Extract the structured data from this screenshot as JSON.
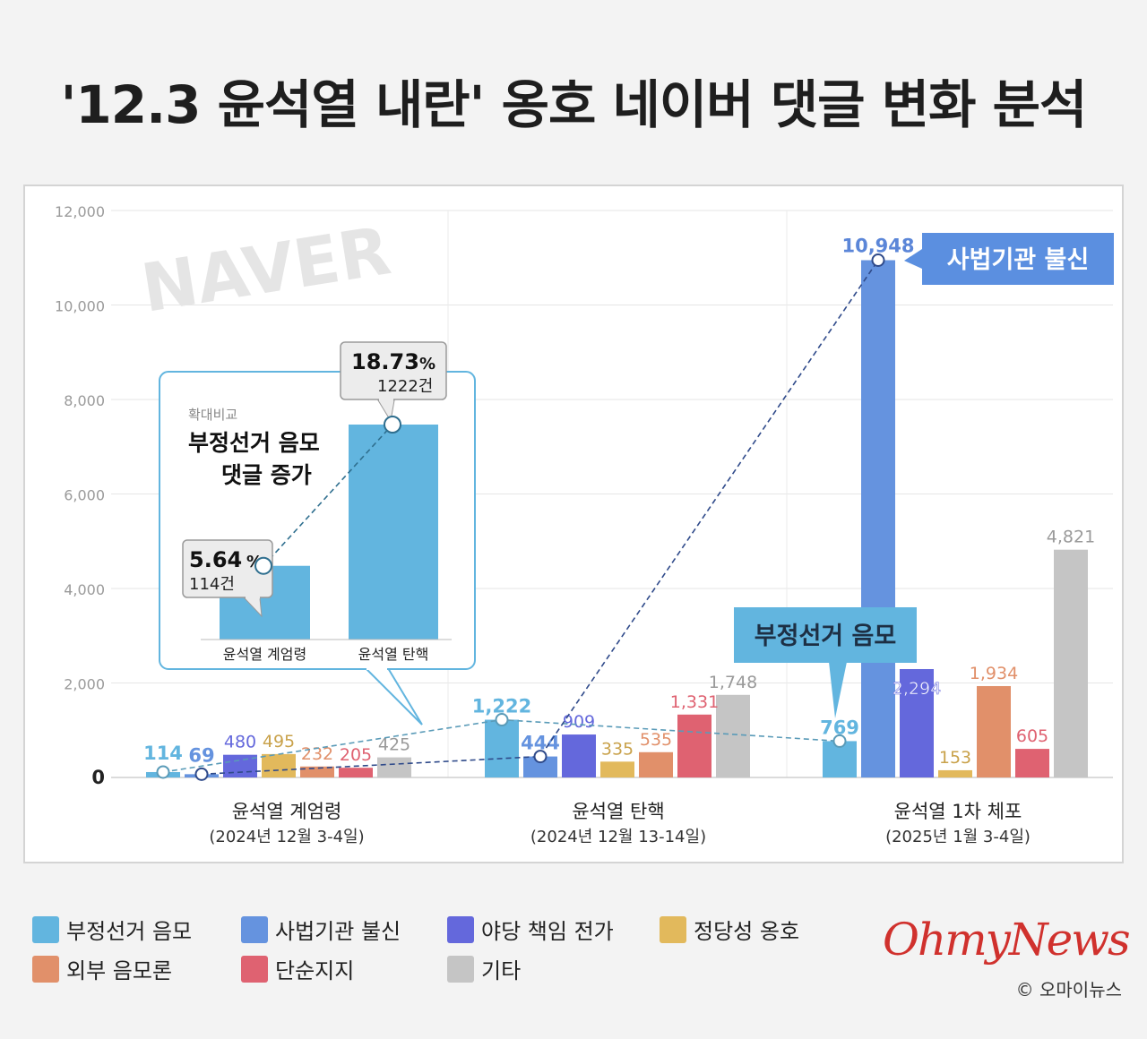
{
  "title": "'12.3 윤석열 내란' 옹호 네이버 댓글 변화 분석",
  "watermark": "NAVER",
  "chart_data": {
    "type": "bar",
    "y_ticks": [
      "12,000",
      "10,000",
      "8,000",
      "6,000",
      "4,000",
      "2,000",
      "0"
    ],
    "ylim": [
      0,
      12000
    ],
    "grid": true,
    "categories": [
      {
        "name": "윤석열 계엄령",
        "date": "(2024년 12월 3-4일)"
      },
      {
        "name": "윤석열 탄핵",
        "date": "(2024년 12월 13-14일)"
      },
      {
        "name": "윤석열 1차 체포",
        "date": "(2025년 1월 3-4일)"
      }
    ],
    "series": [
      {
        "name": "부정선거 음모",
        "color": "#62b5df",
        "values": [
          114,
          1222,
          769
        ],
        "labels": [
          "114",
          "1,222",
          "769"
        ]
      },
      {
        "name": "사법기관 불신",
        "color": "#6593df",
        "values": [
          69,
          444,
          10948
        ],
        "labels": [
          "69",
          "444",
          "10,948"
        ]
      },
      {
        "name": "야당 책임 전가",
        "color": "#6468dc",
        "values": [
          480,
          909,
          2294
        ],
        "labels": [
          "480",
          "909",
          "2,294"
        ]
      },
      {
        "name": "정당성 옹호",
        "color": "#e2b95c",
        "values": [
          495,
          335,
          153
        ],
        "labels": [
          "495",
          "335",
          "153"
        ]
      },
      {
        "name": "외부 음모론",
        "color": "#e1906a",
        "values": [
          232,
          535,
          1934
        ],
        "labels": [
          "232",
          "535",
          "1,934"
        ]
      },
      {
        "name": "단순지지",
        "color": "#df6271",
        "values": [
          205,
          1331,
          605
        ],
        "labels": [
          "205",
          "1,331",
          "605"
        ]
      },
      {
        "name": "기타",
        "color": "#c5c5c5",
        "values": [
          425,
          1748,
          4821
        ],
        "labels": [
          "425",
          "1,748",
          "4,821"
        ]
      }
    ],
    "callouts": {
      "judiciary": "사법기관 불신",
      "fraud": "부정선거 음모"
    },
    "inset": {
      "tag": "확대비교",
      "title_line1": "부정선거 음모",
      "title_line2": "댓글 증가",
      "bars": [
        {
          "label": "윤석열 계엄령",
          "percent": "5.64",
          "count": "114건",
          "value": 5.64
        },
        {
          "label": "윤석열 탄핵",
          "percent": "18.73",
          "count": "1222건",
          "value": 18.73
        }
      ],
      "percent_sign": "%"
    }
  },
  "brand": "OhmyNews",
  "copyright": "© 오마이뉴스"
}
